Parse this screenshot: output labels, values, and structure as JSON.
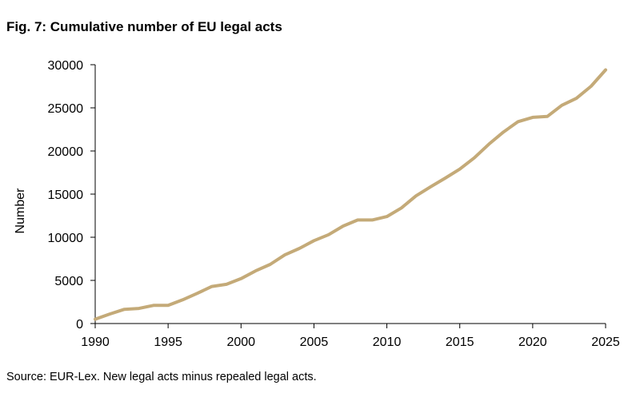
{
  "figure": {
    "title": "Fig. 7: Cumulative number of EU legal acts",
    "source": "Source: EUR-Lex. New legal acts minus repealed legal acts."
  },
  "colors": {
    "series": "#C4AA78",
    "axis": "#000000",
    "text": "#000000"
  },
  "chart_data": {
    "type": "line",
    "title": "Fig. 7: Cumulative number of EU legal acts",
    "xlabel": "",
    "ylabel": "Number",
    "xlim": [
      1990,
      2025
    ],
    "ylim": [
      0,
      30000
    ],
    "xticks": [
      1990,
      1995,
      2000,
      2005,
      2010,
      2015,
      2020,
      2025
    ],
    "yticks": [
      0,
      5000,
      10000,
      15000,
      20000,
      25000,
      30000
    ],
    "grid": false,
    "legend": "none",
    "series": [
      {
        "x": [
          1990,
          1991,
          1992,
          1993,
          1994,
          1995,
          1996,
          1997,
          1998,
          1999,
          2000,
          2001,
          2002,
          2003,
          2004,
          2005,
          2006,
          2007,
          2008,
          2009,
          2010,
          2011,
          2012,
          2013,
          2014,
          2015,
          2016,
          2017,
          2018,
          2019,
          2020,
          2021,
          2022,
          2023,
          2024,
          2025
        ],
        "values": [
          500,
          1100,
          1650,
          1750,
          2100,
          2100,
          2750,
          3500,
          4300,
          4550,
          5200,
          6100,
          6850,
          7950,
          8700,
          9600,
          10300,
          11300,
          12000,
          12000,
          12400,
          13400,
          14800,
          15850,
          16850,
          17900,
          19200,
          20800,
          22200,
          23400,
          23900,
          24000,
          25300,
          26100,
          27500,
          29400
        ]
      }
    ]
  }
}
